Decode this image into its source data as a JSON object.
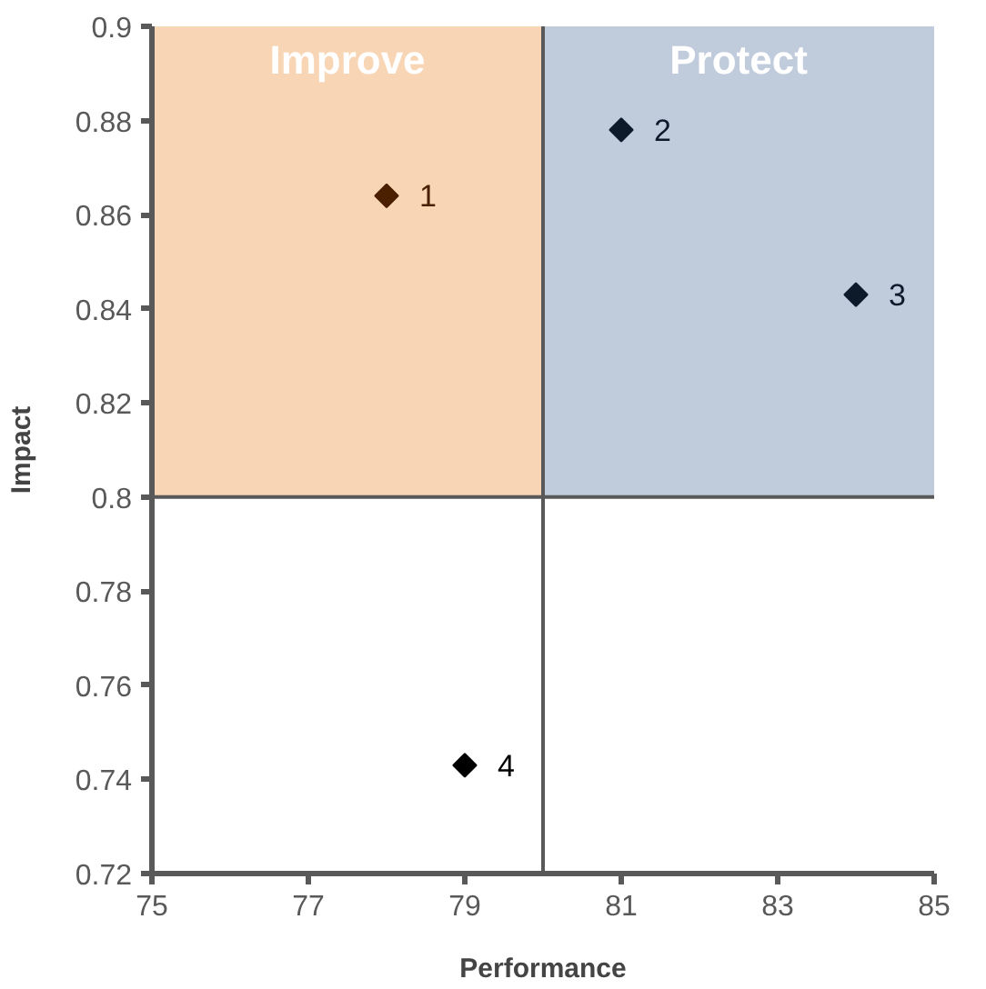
{
  "chart_data": {
    "type": "scatter",
    "xlabel": "Performance",
    "ylabel": "Impact",
    "xlim": [
      75,
      85
    ],
    "ylim": [
      0.72,
      0.9
    ],
    "xticks": [
      75,
      77,
      79,
      81,
      83,
      85
    ],
    "yticks": [
      0.72,
      0.74,
      0.76,
      0.78,
      0.8,
      0.82,
      0.84,
      0.86,
      0.88,
      0.9
    ],
    "marker": "diamond",
    "grid": false,
    "legend": false,
    "bands": [
      {
        "axis": "x",
        "from": 75,
        "to": 80,
        "label": "Improve",
        "color": "#f8d5b5"
      },
      {
        "axis": "x",
        "from": 80,
        "to": 85,
        "label": "Protect",
        "color": "#c0cbdc"
      }
    ],
    "ref_lines": [
      {
        "axis": "x",
        "value": 80,
        "color": "#595959"
      },
      {
        "axis": "y",
        "value": 0.8,
        "color": "#595959"
      }
    ],
    "series": [
      {
        "name": "1",
        "color": "#4a2000",
        "x": [
          78
        ],
        "values": [
          0.864
        ]
      },
      {
        "name": "2",
        "color": "#0d1a2a",
        "x": [
          81
        ],
        "values": [
          0.878
        ]
      },
      {
        "name": "3",
        "color": "#0d1a2a",
        "x": [
          84
        ],
        "values": [
          0.843
        ]
      },
      {
        "name": "4",
        "color": "#000000",
        "x": [
          79
        ],
        "values": [
          0.743
        ]
      }
    ]
  }
}
